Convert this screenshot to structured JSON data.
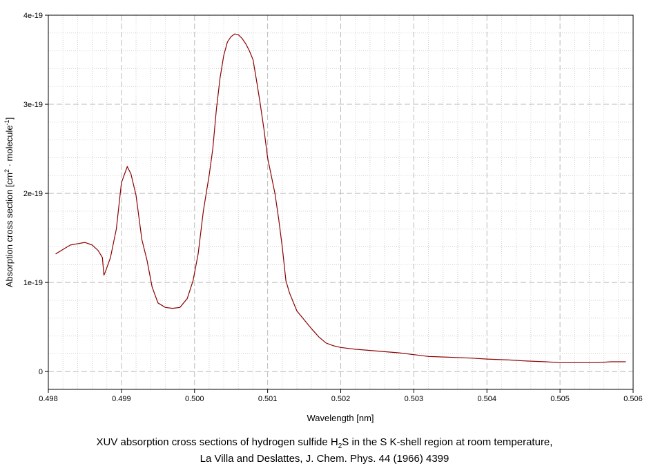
{
  "chart_data": {
    "type": "line",
    "xlabel": "Wavelength [nm]",
    "ylabel": {
      "prefix": "Absorption cross section [cm",
      "sup1": "2",
      "middle": " · molecule",
      "sup2": "-1",
      "suffix": "]"
    },
    "xlim": [
      0.498,
      0.506
    ],
    "ylim": [
      -2e-20,
      4e-19
    ],
    "x_ticks": [
      0.498,
      0.499,
      0.5,
      0.501,
      0.502,
      0.503,
      0.504,
      0.505,
      0.506
    ],
    "x_tick_labels": [
      "0.498",
      "0.499",
      "0.500",
      "0.501",
      "0.502",
      "0.503",
      "0.504",
      "0.505",
      "0.506"
    ],
    "y_ticks": [
      0,
      1e-19,
      2e-19,
      3e-19,
      4e-19
    ],
    "y_tick_labels": [
      "0",
      "1e-19",
      "2e-19",
      "3e-19",
      "4e-19"
    ],
    "grid": true,
    "line_color": "#8b0000",
    "series": [
      {
        "x": [
          0.4981,
          0.4983,
          0.4985,
          0.4986,
          0.49868,
          0.49874,
          0.49876,
          0.49878,
          0.49885,
          0.49893,
          0.499,
          0.49908,
          0.49913,
          0.4992,
          0.49928,
          0.49935,
          0.49942,
          0.4995,
          0.4996,
          0.4997,
          0.4998,
          0.4999,
          0.49998,
          0.50005,
          0.50012,
          0.50017,
          0.5002,
          0.50025,
          0.5003,
          0.50035,
          0.5004,
          0.50045,
          0.5005,
          0.50055,
          0.5006,
          0.50065,
          0.5007,
          0.50075,
          0.5008,
          0.50085,
          0.5009,
          0.50095,
          0.501,
          0.50105,
          0.5011,
          0.50115,
          0.5012,
          0.50125,
          0.5013,
          0.5014,
          0.5015,
          0.5016,
          0.5017,
          0.5018,
          0.5019,
          0.502,
          0.5022,
          0.5025,
          0.5028,
          0.503,
          0.5032,
          0.5035,
          0.5038,
          0.504,
          0.5043,
          0.5045,
          0.5048,
          0.505,
          0.5053,
          0.5055,
          0.5057,
          0.5059
        ],
        "y": [
          1.32e-19,
          1.42e-19,
          1.45e-19,
          1.42e-19,
          1.36e-19,
          1.28e-19,
          1.08e-19,
          1.12e-19,
          1.28e-19,
          1.6e-19,
          2.12e-19,
          2.3e-19,
          2.22e-19,
          1.98e-19,
          1.48e-19,
          1.25e-19,
          9.5e-20,
          7.7e-20,
          7.2e-20,
          7.1e-20,
          7.2e-20,
          8.2e-20,
          1.02e-19,
          1.32e-19,
          1.8e-19,
          2.05e-19,
          2.2e-19,
          2.5e-19,
          2.95e-19,
          3.3e-19,
          3.55e-19,
          3.7e-19,
          3.76e-19,
          3.79e-19,
          3.78e-19,
          3.74e-19,
          3.68e-19,
          3.6e-19,
          3.5e-19,
          3.26e-19,
          3e-19,
          2.72e-19,
          2.4e-19,
          2.2e-19,
          2e-19,
          1.72e-19,
          1.4e-19,
          1.02e-19,
          8.8e-20,
          6.8e-20,
          5.8e-20,
          4.8e-20,
          3.9e-20,
          3.2e-20,
          2.9e-20,
          2.7e-20,
          2.5e-20,
          2.3e-20,
          2.1e-20,
          1.9e-20,
          1.7e-20,
          1.6e-20,
          1.5e-20,
          1.4e-20,
          1.3e-20,
          1.2e-20,
          1.1e-20,
          1e-20,
          1e-20,
          1e-20,
          1.1e-20,
          1.1e-20
        ]
      }
    ]
  },
  "caption": {
    "line1_a": "XUV absorption cross sections of hydrogen sulfide H",
    "line1_sub": "2",
    "line1_b": "S in the S K-shell region at room temperature,",
    "line2": "La Villa and Deslattes, J. Chem. Phys. 44 (1966) 4399"
  }
}
